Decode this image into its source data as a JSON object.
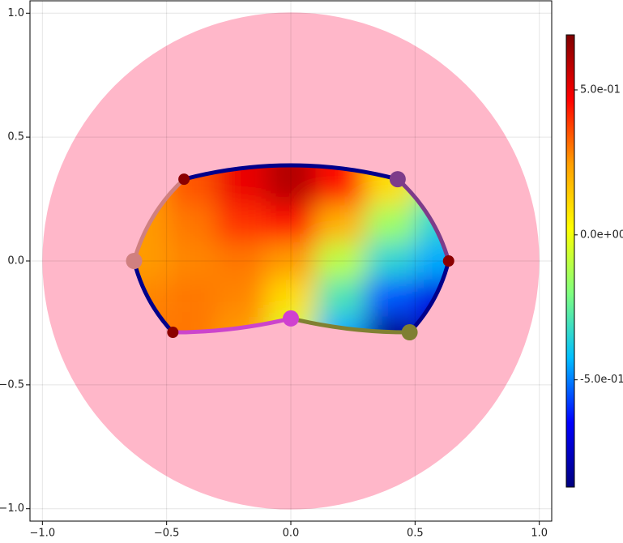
{
  "chart_data": {
    "type": "hyperbolic-polygon",
    "xlim": [
      -1.05,
      1.05
    ],
    "ylim": [
      -1.05,
      1.05
    ],
    "xticks": [
      {
        "value": -1,
        "label": "−1.0"
      },
      {
        "value": -0.5,
        "label": "−0.5"
      },
      {
        "value": 0,
        "label": "0.0"
      },
      0.5,
      {
        "value": 1,
        "label": "1.0"
      }
    ],
    "yticks": [
      {
        "value": -1,
        "label": "−1.0"
      },
      {
        "value": -0.5,
        "label": "−0.5"
      },
      {
        "value": 0,
        "label": "0.0"
      },
      0.5,
      {
        "value": 1,
        "label": "1.0"
      }
    ],
    "grid": true,
    "disk": {
      "radius": 1,
      "color": "#ffb7c9"
    },
    "vertices": {
      "x": [
        -0.43,
        0.43,
        0.635,
        0.478,
        0,
        -0.475,
        -0.631
      ],
      "y": [
        0.33,
        0.33,
        0,
        -0.288,
        -0.232,
        -0.288,
        0
      ],
      "colors": [
        "#8b0000",
        "#7d3c8a",
        "#8b0000",
        "#7f7f32",
        "#d040d0",
        "#8b0000",
        "#d08080"
      ],
      "sizes": [
        7,
        10,
        7,
        10,
        10,
        7,
        10
      ]
    },
    "edge_colors": [
      "#00008b",
      "#7d3c8a",
      "#00008b",
      "#808032",
      "#cc44cc",
      "#00008b",
      "#d08080"
    ],
    "field": {
      "x": [
        -0.6,
        -0.4,
        -0.2,
        0,
        0.2,
        0.4,
        0.6
      ],
      "y": [
        0.3,
        0.15,
        0,
        -0.15,
        -0.3
      ],
      "values": [
        [
          0.25,
          0.35,
          0.5,
          0.6,
          0.45,
          0.1,
          -0.2
        ],
        [
          0.25,
          0.3,
          0.4,
          0.45,
          0.2,
          -0.15,
          -0.35
        ],
        [
          0.25,
          0.28,
          0.3,
          0.25,
          -0.1,
          -0.35,
          -0.45
        ],
        [
          0.28,
          0.3,
          0.28,
          0.1,
          -0.3,
          -0.55,
          -0.7
        ],
        [
          0.3,
          0.3,
          0.25,
          -0.05,
          -0.45,
          -0.85,
          -0.75
        ]
      ]
    },
    "colormap": [
      "#00007f",
      "#0000ff",
      "#00bfff",
      "#7fff7f",
      "#ffff00",
      "#ff9f00",
      "#ff0000",
      "#7f0000"
    ],
    "clim": [
      -0.87,
      0.69
    ],
    "colorbar_ticks": [
      {
        "value": -0.5,
        "label": "-5.0e-01"
      },
      {
        "value": 0,
        "label": "0.0e+00"
      },
      {
        "value": 0.5,
        "label": "5.0e-01"
      }
    ]
  }
}
